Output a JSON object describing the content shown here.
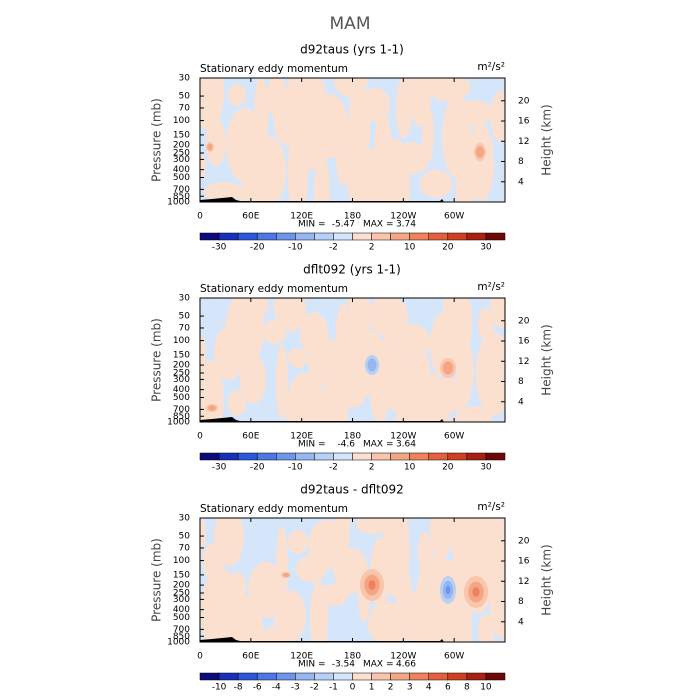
{
  "title": "MAM",
  "chart_data": [
    {
      "type": "contour",
      "title": "d92taus (yrs 1-1)",
      "subtitle": "Stationary eddy momentum",
      "units": "m²/s²",
      "ylabel": "Pressure (mb)",
      "y2label": "Height (km)",
      "ylog": true,
      "xlim": [
        0,
        360
      ],
      "xticks": [
        0,
        {
          "value": 60,
          "label": "60E"
        },
        {
          "value": 120,
          "label": "120E"
        },
        180,
        {
          "value": 240,
          "label": "120W"
        },
        {
          "value": 300,
          "label": "60W"
        }
      ],
      "ylim": [
        1000,
        30
      ],
      "yticks": [
        30,
        50,
        70,
        100,
        150,
        200,
        250,
        300,
        400,
        500,
        700,
        850,
        1000
      ],
      "y2lim": [
        0,
        24.5
      ],
      "y2ticks": [
        4,
        8,
        12,
        16,
        20
      ],
      "min_label": "MIN =",
      "min": -5.47,
      "max_label": "MAX =",
      "max": 3.74,
      "colorbar": {
        "levels": [
          -30,
          -25,
          -20,
          -15,
          -10,
          -5,
          -2,
          0,
          2,
          5,
          10,
          15,
          20,
          25,
          30
        ],
        "ticks": [
          -30,
          -20,
          -10,
          -2,
          2,
          10,
          20,
          30
        ],
        "colors": [
          "#0b0b7a",
          "#1a2fb8",
          "#2b57d9",
          "#4a78e4",
          "#6d95ea",
          "#95b6f0",
          "#b7d0f5",
          "#d6e6fa",
          "#fbe0d0",
          "#f9c6ac",
          "#f4a583",
          "#ee825c",
          "#e4603c",
          "#cf4020",
          "#a92010",
          "#6e0808"
        ]
      }
    },
    {
      "type": "contour",
      "title": "dflt092 (yrs 1-1)",
      "subtitle": "Stationary eddy momentum",
      "units": "m²/s²",
      "ylabel": "Pressure (mb)",
      "y2label": "Height (km)",
      "ylog": true,
      "xlim": [
        0,
        360
      ],
      "xticks": [
        0,
        {
          "value": 60,
          "label": "60E"
        },
        {
          "value": 120,
          "label": "120E"
        },
        180,
        {
          "value": 240,
          "label": "120W"
        },
        {
          "value": 300,
          "label": "60W"
        }
      ],
      "ylim": [
        1000,
        30
      ],
      "yticks": [
        30,
        50,
        70,
        100,
        150,
        200,
        250,
        300,
        400,
        500,
        700,
        850,
        1000
      ],
      "y2lim": [
        0,
        24.5
      ],
      "y2ticks": [
        4,
        8,
        12,
        16,
        20
      ],
      "min_label": "MIN =",
      "min": -4.6,
      "max_label": "MAX =",
      "max": 3.64,
      "colorbar": {
        "levels": [
          -30,
          -25,
          -20,
          -15,
          -10,
          -5,
          -2,
          0,
          2,
          5,
          10,
          15,
          20,
          25,
          30
        ],
        "ticks": [
          -30,
          -20,
          -10,
          -2,
          2,
          10,
          20,
          30
        ],
        "colors": [
          "#0b0b7a",
          "#1a2fb8",
          "#2b57d9",
          "#4a78e4",
          "#6d95ea",
          "#95b6f0",
          "#b7d0f5",
          "#d6e6fa",
          "#fbe0d0",
          "#f9c6ac",
          "#f4a583",
          "#ee825c",
          "#e4603c",
          "#cf4020",
          "#a92010",
          "#6e0808"
        ]
      }
    },
    {
      "type": "contour",
      "title": "d92taus - dflt092",
      "subtitle": "Stationary eddy momentum",
      "units": "m²/s²",
      "ylabel": "Pressure (mb)",
      "y2label": "Height (km)",
      "ylog": true,
      "xlim": [
        0,
        360
      ],
      "xticks": [
        0,
        {
          "value": 60,
          "label": "60E"
        },
        {
          "value": 120,
          "label": "120E"
        },
        180,
        {
          "value": 240,
          "label": "120W"
        },
        {
          "value": 300,
          "label": "60W"
        }
      ],
      "ylim": [
        1000,
        30
      ],
      "yticks": [
        30,
        50,
        70,
        100,
        150,
        200,
        250,
        300,
        400,
        500,
        700,
        850,
        1000
      ],
      "y2lim": [
        0,
        24.5
      ],
      "y2ticks": [
        4,
        8,
        12,
        16,
        20
      ],
      "min_label": "MIN =",
      "min": -3.54,
      "max_label": "MAX =",
      "max": 4.66,
      "colorbar": {
        "levels": [
          -10,
          -8,
          -6,
          -4,
          -3,
          -2,
          -1,
          0,
          1,
          2,
          3,
          4,
          6,
          8,
          10
        ],
        "ticks": [
          -10,
          -8,
          -6,
          -4,
          -3,
          -2,
          -1,
          0,
          1,
          2,
          3,
          4,
          6,
          8,
          10
        ],
        "colors": [
          "#0b0b7a",
          "#1a2fb8",
          "#2b57d9",
          "#4a78e4",
          "#6d95ea",
          "#95b6f0",
          "#b7d0f5",
          "#d6e6fa",
          "#fbe0d0",
          "#f9c6ac",
          "#f4a583",
          "#ee825c",
          "#e4603c",
          "#cf4020",
          "#a92010",
          "#6e0808"
        ]
      }
    }
  ]
}
